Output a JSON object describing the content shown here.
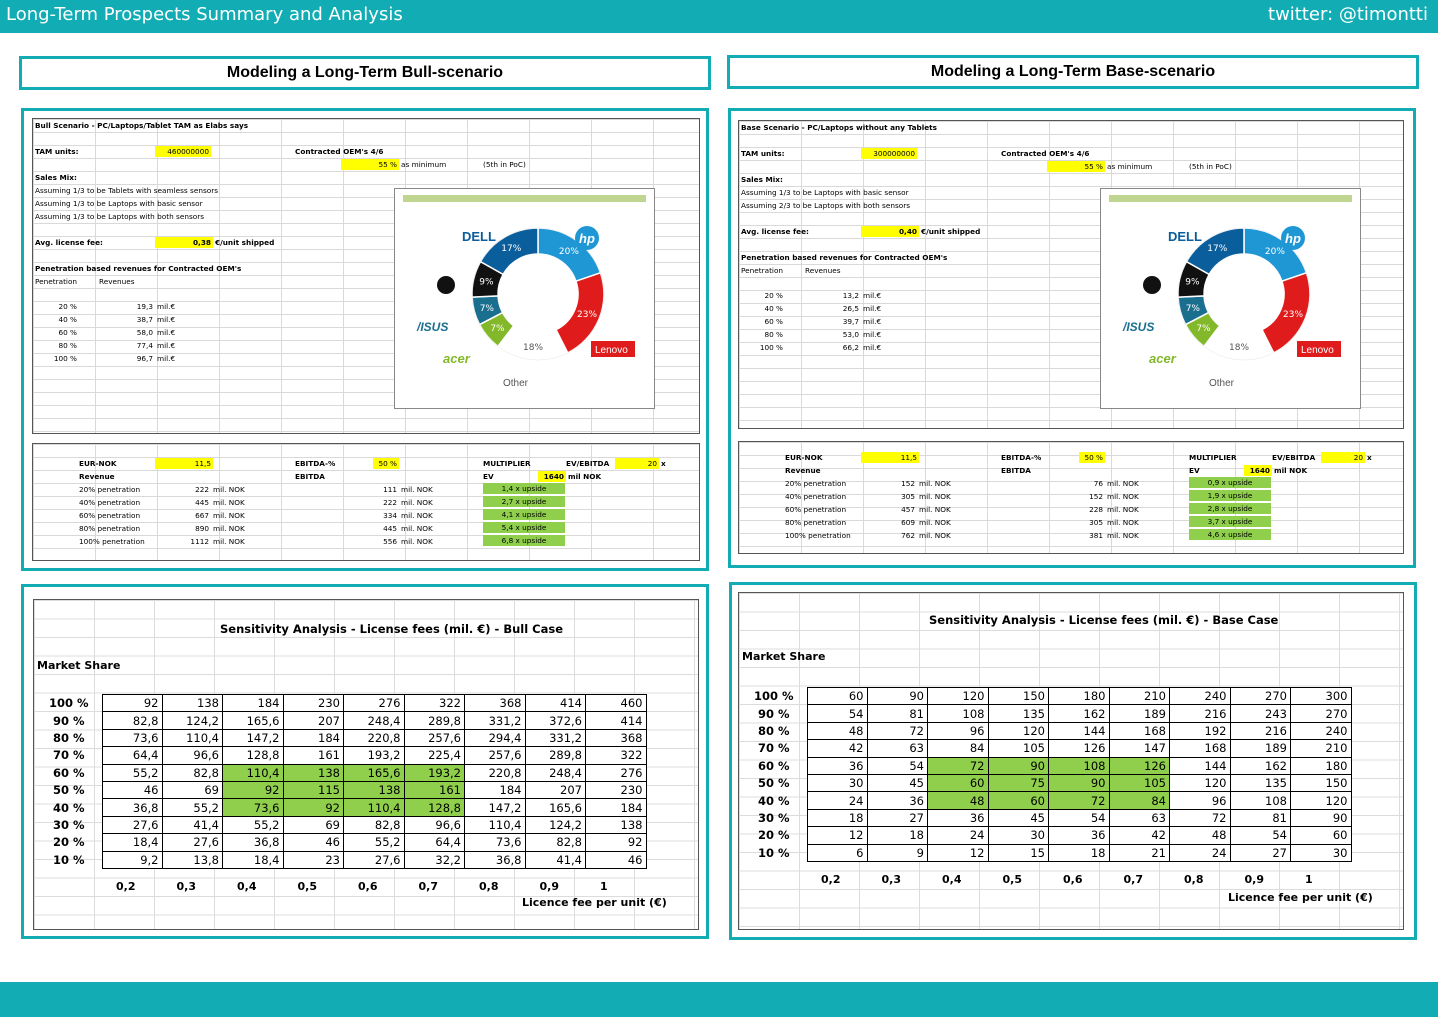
{
  "header": {
    "title": "Long-Term Prospects Summary and Analysis",
    "handle": "twitter: @timontti"
  },
  "bull": {
    "heading": "Modeling a Long-Term Bull-scenario",
    "title": "Bull Scenario - PC/Laptops/Tablet TAM as Elabs says",
    "tam_label": "TAM units:",
    "tam_value": "460000000",
    "oem_label": "Contracted OEM's 4/6",
    "oem_pct": "55 %",
    "oem_min": "as minimum",
    "oem_note": "(5th in PoC)",
    "sales_mix": "Sales Mix:",
    "mix": [
      "Assuming 1/3 to be Tablets with seamless sensors",
      "Assuming 1/3 to be Laptops with basic sensor",
      "Assuming 1/3 to be Laptops with both sensors"
    ],
    "fee_label": "Avg. license fee:",
    "fee_value": "0,38",
    "fee_unit": "€/unit shipped",
    "pen_title": "Penetration based revenues for Contracted OEM's",
    "pen_col1": "Penetration",
    "pen_col2": "Revenues",
    "pen_rows": [
      [
        "20 %",
        "19,3",
        "mil.€"
      ],
      [
        "40 %",
        "38,7",
        "mil.€"
      ],
      [
        "60 %",
        "58,0",
        "mil.€"
      ],
      [
        "80 %",
        "77,4",
        "mil.€"
      ],
      [
        "100 %",
        "96,7",
        "mil.€"
      ]
    ],
    "eurnok_label": "EUR-NOK",
    "eurnok": "11,5",
    "ebitda_pct_label": "EBITDA-%",
    "ebitda_pct": "50 %",
    "mult_label": "MULTIPLIER",
    "evebitda_label": "EV/EBITDA",
    "evebitda": "20",
    "x": "x",
    "revenue_label": "Revenue",
    "ebitda_label": "EBITDA",
    "ev_label": "EV",
    "ev_value": "1640",
    "ev_unit": "mil NOK",
    "val_rows": [
      [
        "20% penetration",
        "222",
        "mil. NOK",
        "111",
        "mil. NOK",
        "1,4 x upside"
      ],
      [
        "40% penetration",
        "445",
        "mil. NOK",
        "222",
        "mil. NOK",
        "2,7 x upside"
      ],
      [
        "60% penetration",
        "667",
        "mil. NOK",
        "334",
        "mil. NOK",
        "4,1 x upside"
      ],
      [
        "80% penetration",
        "890",
        "mil. NOK",
        "445",
        "mil. NOK",
        "5,4 x upside"
      ],
      [
        "100% penetration",
        "1112",
        "mil. NOK",
        "556",
        "mil. NOK",
        "6,8 x upside"
      ]
    ],
    "sens_title": "Sensitivity Analysis - License fees (mil. €) - Bull Case",
    "market_share": "Market Share",
    "row_labels": [
      "100 %",
      "90 %",
      "80 %",
      "70 %",
      "60 %",
      "50 %",
      "40 %",
      "30 %",
      "20 %",
      "10 %"
    ],
    "col_labels": [
      "0,2",
      "0,3",
      "0,4",
      "0,5",
      "0,6",
      "0,7",
      "0,8",
      "0,9",
      "1"
    ],
    "grid": [
      [
        "92",
        "138",
        "184",
        "230",
        "276",
        "322",
        "368",
        "414",
        "460"
      ],
      [
        "82,8",
        "124,2",
        "165,6",
        "207",
        "248,4",
        "289,8",
        "331,2",
        "372,6",
        "414"
      ],
      [
        "73,6",
        "110,4",
        "147,2",
        "184",
        "220,8",
        "257,6",
        "294,4",
        "331,2",
        "368"
      ],
      [
        "64,4",
        "96,6",
        "128,8",
        "161",
        "193,2",
        "225,4",
        "257,6",
        "289,8",
        "322"
      ],
      [
        "55,2",
        "82,8",
        "110,4",
        "138",
        "165,6",
        "193,2",
        "220,8",
        "248,4",
        "276"
      ],
      [
        "46",
        "69",
        "92",
        "115",
        "138",
        "161",
        "184",
        "207",
        "230"
      ],
      [
        "36,8",
        "55,2",
        "73,6",
        "92",
        "110,4",
        "128,8",
        "147,2",
        "165,6",
        "184"
      ],
      [
        "27,6",
        "41,4",
        "55,2",
        "69",
        "82,8",
        "96,6",
        "110,4",
        "124,2",
        "138"
      ],
      [
        "18,4",
        "27,6",
        "36,8",
        "46",
        "55,2",
        "64,4",
        "73,6",
        "82,8",
        "92"
      ],
      [
        "9,2",
        "13,8",
        "18,4",
        "23",
        "27,6",
        "32,2",
        "36,8",
        "41,4",
        "46"
      ]
    ],
    "xaxis": "Licence fee per unit (€)"
  },
  "base": {
    "heading": "Modeling a Long-Term Base-scenario",
    "title": "Base Scenario - PC/Laptops without any Tablets",
    "tam_label": "TAM units:",
    "tam_value": "300000000",
    "oem_label": "Contracted OEM's 4/6",
    "oem_pct": "55 %",
    "oem_min": "as minimum",
    "oem_note": "(5th in PoC)",
    "sales_mix": "Sales Mix:",
    "mix": [
      "Assuming 1/3 to be Laptops with basic sensor",
      "Assuming 2/3 to be Laptops with both sensors"
    ],
    "fee_label": "Avg. license fee:",
    "fee_value": "0,40",
    "fee_unit": "€/unit shipped",
    "pen_title": "Penetration based revenues for Contracted OEM's",
    "pen_col1": "Penetration",
    "pen_col2": "Revenues",
    "pen_rows": [
      [
        "20 %",
        "13,2",
        "mil.€"
      ],
      [
        "40 %",
        "26,5",
        "mil.€"
      ],
      [
        "60 %",
        "39,7",
        "mil.€"
      ],
      [
        "80 %",
        "53,0",
        "mil.€"
      ],
      [
        "100 %",
        "66,2",
        "mil.€"
      ]
    ],
    "eurnok_label": "EUR-NOK",
    "eurnok": "11,5",
    "ebitda_pct_label": "EBITDA-%",
    "ebitda_pct": "50 %",
    "mult_label": "MULTIPLIER",
    "evebitda_label": "EV/EBITDA",
    "evebitda": "20",
    "x": "x",
    "revenue_label": "Revenue",
    "ebitda_label": "EBITDA",
    "ev_label": "EV",
    "ev_value": "1640",
    "ev_unit": "mil NOK",
    "val_rows": [
      [
        "20% penetration",
        "152",
        "mil. NOK",
        "76",
        "mil. NOK",
        "0,9 x upside"
      ],
      [
        "40% penetration",
        "305",
        "mil. NOK",
        "152",
        "mil. NOK",
        "1,9 x upside"
      ],
      [
        "60% penetration",
        "457",
        "mil. NOK",
        "228",
        "mil. NOK",
        "2,8 x upside"
      ],
      [
        "80% penetration",
        "609",
        "mil. NOK",
        "305",
        "mil. NOK",
        "3,7 x upside"
      ],
      [
        "100% penetration",
        "762",
        "mil. NOK",
        "381",
        "mil. NOK",
        "4,6 x upside"
      ]
    ],
    "sens_title": "Sensitivity Analysis - License fees (mil. €) - Base Case",
    "market_share": "Market Share",
    "row_labels": [
      "100 %",
      "90 %",
      "80 %",
      "70 %",
      "60 %",
      "50 %",
      "40 %",
      "30 %",
      "20 %",
      "10 %"
    ],
    "col_labels": [
      "0,2",
      "0,3",
      "0,4",
      "0,5",
      "0,6",
      "0,7",
      "0,8",
      "0,9",
      "1"
    ],
    "grid": [
      [
        "60",
        "90",
        "120",
        "150",
        "180",
        "210",
        "240",
        "270",
        "300"
      ],
      [
        "54",
        "81",
        "108",
        "135",
        "162",
        "189",
        "216",
        "243",
        "270"
      ],
      [
        "48",
        "72",
        "96",
        "120",
        "144",
        "168",
        "192",
        "216",
        "240"
      ],
      [
        "42",
        "63",
        "84",
        "105",
        "126",
        "147",
        "168",
        "189",
        "210"
      ],
      [
        "36",
        "54",
        "72",
        "90",
        "108",
        "126",
        "144",
        "162",
        "180"
      ],
      [
        "30",
        "45",
        "60",
        "75",
        "90",
        "105",
        "120",
        "135",
        "150"
      ],
      [
        "24",
        "36",
        "48",
        "60",
        "72",
        "84",
        "96",
        "108",
        "120"
      ],
      [
        "18",
        "27",
        "36",
        "45",
        "54",
        "63",
        "72",
        "81",
        "90"
      ],
      [
        "12",
        "18",
        "24",
        "30",
        "36",
        "42",
        "48",
        "54",
        "60"
      ],
      [
        "6",
        "9",
        "12",
        "15",
        "18",
        "21",
        "24",
        "27",
        "30"
      ]
    ],
    "xaxis": "Licence fee per unit (€)"
  },
  "donut": {
    "segments": [
      {
        "brand": "HP",
        "pct": 20,
        "label": "20%",
        "color": "#1f97d4"
      },
      {
        "brand": "Lenovo",
        "pct": 23,
        "label": "23%",
        "color": "#e01b1b"
      },
      {
        "brand": "Other",
        "pct": 18,
        "label": "18%",
        "color": "#ffffff"
      },
      {
        "brand": "Acer",
        "pct": 7,
        "label": "7%",
        "color": "#82b829"
      },
      {
        "brand": "Asus",
        "pct": 7,
        "label": "7%",
        "color": "#1a6f8f"
      },
      {
        "brand": "Apple",
        "pct": 9,
        "label": "9%",
        "color": "#111111"
      },
      {
        "brand": "Dell",
        "pct": 17,
        "label": "17%",
        "color": "#0b5e9c"
      }
    ],
    "brand_labels": {
      "dell": "DELL",
      "hp": "hp",
      "asus": "/ISUS",
      "acer": "acer",
      "lenovo": "Lenovo",
      "other": "Other"
    }
  },
  "highlight": {
    "rows": [
      4,
      5,
      6
    ],
    "cols": [
      2,
      3,
      4,
      5
    ],
    "color": "#8fcf4c"
  }
}
